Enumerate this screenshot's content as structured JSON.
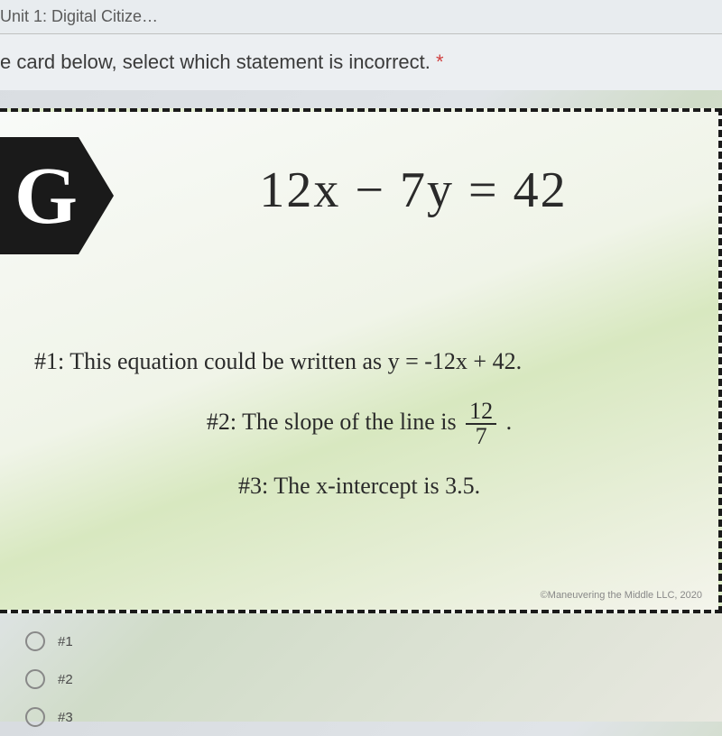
{
  "breadcrumb": {
    "text": "Unit 1: Digital Citize…"
  },
  "prompt": {
    "text_prefix": "e card below, select which statement is incorrect. ",
    "required_marker": "*"
  },
  "card": {
    "badge_letter": "G",
    "equation": "12x − 7y = 42",
    "statements": {
      "s1": {
        "label": "#1",
        "text_before": "#1: This equation could be written as y = -12x + 42."
      },
      "s2": {
        "label": "#2",
        "text_before": "#2: The slope of the line is ",
        "fraction_num": "12",
        "fraction_den": "7",
        "text_after": " ."
      },
      "s3": {
        "label": "#3",
        "text": "#3: The x-intercept is 3.5."
      }
    },
    "copyright": "©Maneuvering the Middle LLC, 2020"
  },
  "options": {
    "opt1": "#1",
    "opt2": "#2",
    "opt3": "#3"
  },
  "colors": {
    "badge_bg": "#1a1a1a",
    "badge_fg": "#ffffff",
    "text": "#2a2a2a",
    "star": "#d04040",
    "dashed_border": "#1a1a1a"
  }
}
